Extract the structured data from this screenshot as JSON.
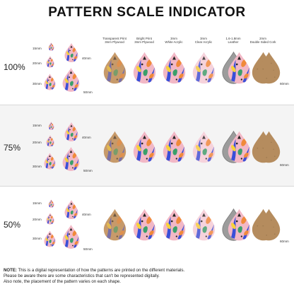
{
  "title": "PATTERN SCALE INDICATOR",
  "rows": [
    {
      "percent": "100%",
      "sizes": [
        "15mm",
        "20mm",
        "30mm",
        "40mm",
        "50mm"
      ],
      "size_60": "60mm"
    },
    {
      "percent": "75%",
      "sizes": [
        "15mm",
        "20mm",
        "30mm",
        "40mm",
        "50mm"
      ],
      "size_60": "60mm"
    },
    {
      "percent": "50%",
      "sizes": [
        "15mm",
        "20mm",
        "30mm",
        "40mm",
        "50mm"
      ],
      "size_60": "60mm"
    }
  ],
  "columns": [
    {
      "line1": "Transparent Print",
      "line2": "3mm Plywood"
    },
    {
      "line1": "Bright Print",
      "line2": "3mm Plywood"
    },
    {
      "line1": "3mm",
      "line2": "White Acrylic"
    },
    {
      "line1": "3mm",
      "line2": "Clear Acrylic"
    },
    {
      "line1": "1.6-1.8mm",
      "line2": "Leather"
    },
    {
      "line1": "2mm",
      "line2": "Double Sided Cork"
    }
  ],
  "note": {
    "label": "NOTE:",
    "text1": " This is a digital representation of how the patterns are printed on the different materials.",
    "text2": "Please be aware there are some characteristics that can't be represented digitally.",
    "text3": "Also note, the placement of the pattern varies on each shape."
  },
  "colors": {
    "pink": "#f2b8c6",
    "blue": "#3a4fd8",
    "orange": "#f08a3a",
    "yellow": "#f7d13a",
    "green": "#3aa06a",
    "wood": "#c79a6a",
    "cork": "#b58c5e",
    "leather": "#9c9c9c",
    "band_bg": "#f4f4f4"
  }
}
